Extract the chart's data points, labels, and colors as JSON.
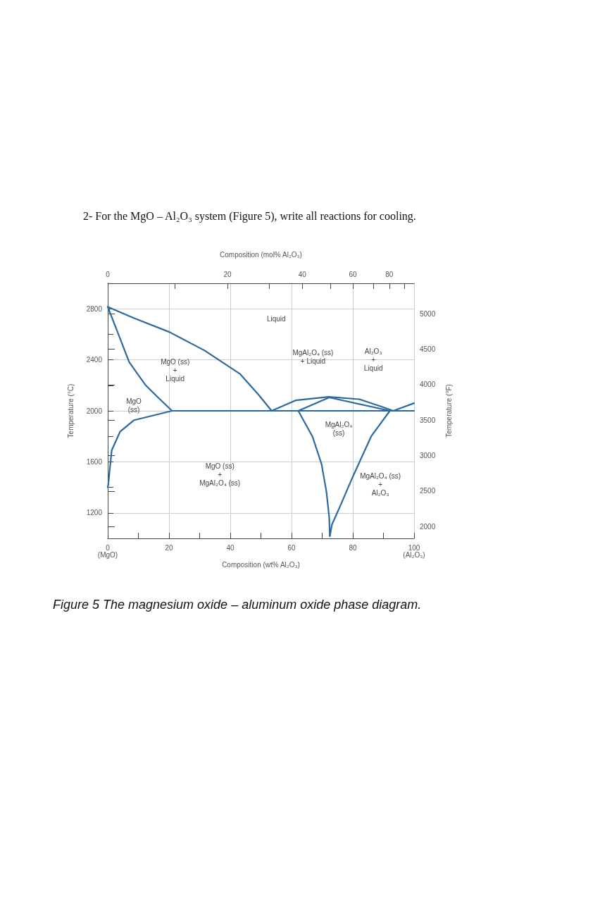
{
  "chart_data": {
    "type": "line",
    "title": "2- For the MgO – Al₂O₃ system (Figure 5), write all reactions for cooling.",
    "xlabel": "Composition (wt% Al₂O₃)",
    "x2label": "Composition (mol% Al₂O₃)",
    "ylabel": "Temperature (°C)",
    "y2label": "Temperature (°F)",
    "xlim": [
      0,
      100
    ],
    "xticks": [
      {
        "value": 0,
        "label": "0\n(MgO)"
      },
      {
        "value": 10,
        "label": null
      },
      {
        "value": 20,
        "label": "20"
      },
      {
        "value": 30,
        "label": null
      },
      {
        "value": 40,
        "label": "40"
      },
      {
        "value": 50,
        "label": null
      },
      {
        "value": 60,
        "label": "60"
      },
      {
        "value": 70,
        "label": null
      },
      {
        "value": 80,
        "label": "80"
      },
      {
        "value": 90,
        "label": null
      },
      {
        "value": 100,
        "label": "100\n(Al₂O₃)"
      }
    ],
    "ylim": [
      1000,
      3000
    ],
    "yticks": [
      {
        "value": 1200,
        "label": "1200"
      },
      {
        "value": 1400,
        "label": null
      },
      {
        "value": 1600,
        "label": "1600"
      },
      {
        "value": 1800,
        "label": null
      },
      {
        "value": 2000,
        "label": "2000"
      },
      {
        "value": 2200,
        "label": null
      },
      {
        "value": 2400,
        "label": "2400"
      },
      {
        "value": 2600,
        "label": null
      },
      {
        "value": 2800,
        "label": "2800"
      }
    ],
    "y2lim": [
      1832,
      5432
    ],
    "y2ticks": [
      2000,
      2500,
      3000,
      3500,
      4000,
      4500,
      5000
    ],
    "grid": true,
    "marker": "none",
    "line_style": "solid",
    "series": [
      {
        "color": "#2a6aa0",
        "x": [
          0,
          8.6,
          20.1,
          31.6,
          43.1,
          49.2,
          53.5
        ],
        "values": [
          2815,
          2727,
          2618,
          2473,
          2291,
          2127,
          2000
        ]
      },
      {
        "color": "#2a6aa0",
        "x": [
          0,
          3.2,
          7,
          12.4,
          17,
          21
        ],
        "values": [
          2815,
          2618,
          2382,
          2200,
          2091,
          2000
        ]
      },
      {
        "color": "#2a6aa0",
        "x": [
          0,
          0.15,
          1.3,
          4,
          8.6,
          21,
          100
        ],
        "values": [
          1400,
          1418,
          1691,
          1836,
          1927,
          2000,
          2000
        ]
      },
      {
        "color": "#2a6aa0",
        "x": [
          53.5,
          61.3,
          72.1,
          82.1,
          89,
          93.2
        ],
        "values": [
          2000,
          2082,
          2110,
          2091,
          2036,
          2000
        ]
      },
      {
        "color": "#2a6aa0",
        "x": [
          62.2,
          72.3,
          92.1
        ],
        "values": [
          2000,
          2105,
          2000
        ]
      },
      {
        "color": "#2a6aa0",
        "x": [
          92.1,
          86,
          79.8,
          75.9,
          73.2,
          72.5
        ],
        "values": [
          2000,
          1800,
          1473,
          1255,
          1109,
          1018
        ]
      },
      {
        "color": "#2a6aa0",
        "x": [
          62.2,
          66.8,
          69.8,
          71.4,
          72.3,
          72.5
        ],
        "values": [
          2000,
          1800,
          1582,
          1364,
          1164,
          1018
        ]
      },
      {
        "color": "#2a6aa0",
        "x": [
          93.2,
          100
        ],
        "values": [
          2000,
          2060
        ]
      }
    ],
    "annotations": [
      "Liquid",
      "MgO (ss)\n+\nLiquid",
      "MgO\n(ss)",
      "MgAl₂O₄ (ss)\n+ Liquid",
      "Al₂O₃\n+\nLiquid",
      "MgAl₂O₄\n(ss)",
      "MgO (ss)\n+\nMgAl₂O₄ (ss)",
      "MgAl₂O₄ (ss)\n+\nAl₂O₃",
      "0",
      "20",
      "40",
      "60",
      "80",
      "Figure 5 The magnesium oxide – aluminum oxide phase diagram."
    ]
  }
}
